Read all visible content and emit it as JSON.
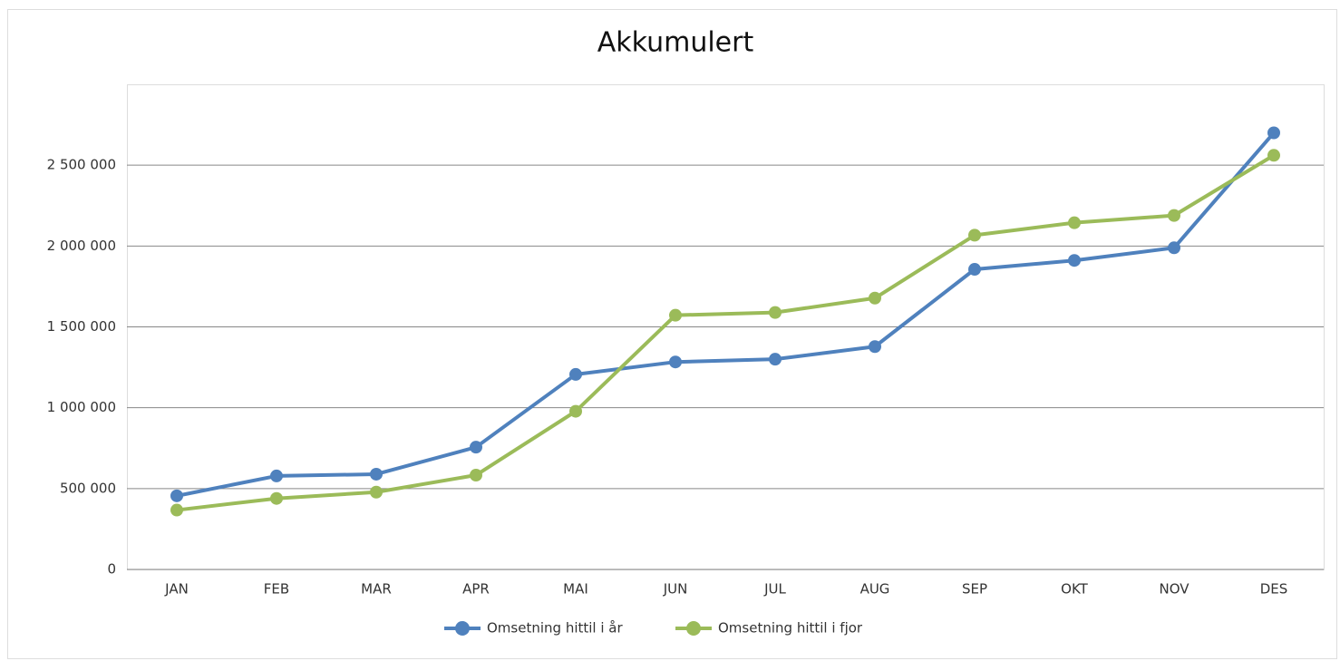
{
  "chart_data": {
    "type": "line",
    "title": "Akkumulert",
    "categories": [
      "JAN",
      "FEB",
      "MAR",
      "APR",
      "MAI",
      "JUN",
      "JUL",
      "AUG",
      "SEP",
      "OKT",
      "NOV",
      "DES"
    ],
    "series": [
      {
        "name": "Omsetning hittil i år",
        "color": "#4f81bd",
        "values": [
          455000,
          578000,
          589000,
          756000,
          1206000,
          1283000,
          1300000,
          1378000,
          1856000,
          1911000,
          1989000,
          2700000
        ]
      },
      {
        "name": "Omsetning hittil i fjor",
        "color": "#9bbb59",
        "values": [
          367000,
          439000,
          478000,
          583000,
          978000,
          1572000,
          1589000,
          1678000,
          2067000,
          2144000,
          2189000,
          2561000
        ]
      }
    ],
    "ylim": [
      0,
      3000000
    ],
    "yticks": [
      0,
      {
        "value": 500000,
        "label": "500 000"
      },
      {
        "value": 1000000,
        "label": "1 000 000"
      },
      {
        "value": 1500000,
        "label": "1 500 000"
      },
      {
        "value": 2000000,
        "label": "2 000 000"
      },
      {
        "value": 2500000,
        "label": "2 500 000"
      }
    ],
    "grid": true,
    "legend": "bottom"
  }
}
